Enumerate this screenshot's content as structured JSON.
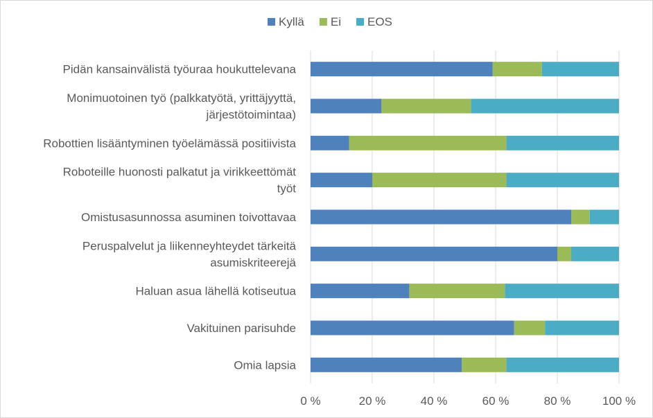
{
  "chart_data": {
    "type": "bar",
    "orientation": "horizontal",
    "stacked": "percent",
    "title": "",
    "xlabel": "",
    "ylabel": "",
    "xlim": [
      0,
      100
    ],
    "x_ticks": [
      "0 %",
      "20 %",
      "40 %",
      "60 %",
      "80 %",
      "100 %"
    ],
    "grid": true,
    "legend_position": "top",
    "categories": [
      [
        "Pidän kansainvälistä työuraa houkuttelevana"
      ],
      [
        "Monimuotoinen työ (palkkatyötä, yrittäjyyttä,",
        "järjestötoimintaa)"
      ],
      [
        "Robottien lisääntyminen työelämässä positiivista"
      ],
      [
        "Roboteille huonosti palkatut ja virikkeettömät",
        "työt"
      ],
      [
        "Omistusasunnossa asuminen toivottavaa"
      ],
      [
        "Peruspalvelut ja liikenneyhteydet tärkeitä",
        "asumiskriteerejä"
      ],
      [
        "Haluan asua lähellä kotiseutua"
      ],
      [
        "Vakituinen parisuhde"
      ],
      [
        "Omia lapsia"
      ]
    ],
    "series": [
      {
        "name": "Kyllä",
        "color": "#4f81bd",
        "values": [
          59,
          23,
          12.5,
          20,
          84.5,
          80,
          32,
          66,
          49
        ]
      },
      {
        "name": "Ei",
        "color": "#9bbb59",
        "values": [
          16,
          29,
          51,
          43.5,
          6,
          4.5,
          31,
          10,
          14.5
        ]
      },
      {
        "name": "EOS",
        "color": "#4bacc6",
        "values": [
          25,
          48,
          36.5,
          36.5,
          9.5,
          15.5,
          37,
          24,
          36.5
        ]
      }
    ]
  }
}
